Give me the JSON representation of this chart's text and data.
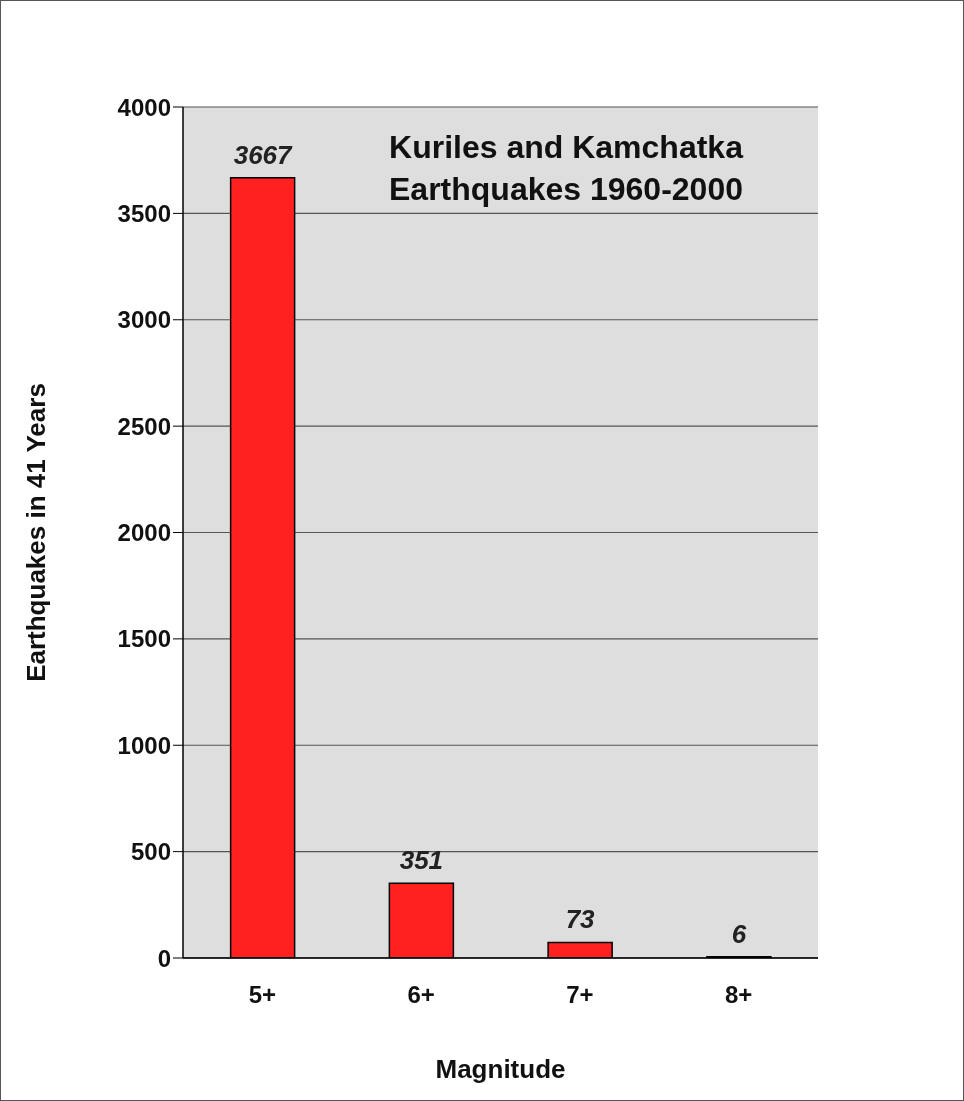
{
  "chart_data": {
    "type": "bar",
    "title": "Kuriles and Kamchatka Earthquakes 1960-2000",
    "xlabel": "Magnitude",
    "ylabel": "Earthquakes in 41 Years",
    "categories": [
      "5+",
      "6+",
      "7+",
      "8+"
    ],
    "values": [
      3667,
      351,
      73,
      6
    ],
    "color": "#ff2020",
    "ylim": [
      0,
      4000
    ],
    "yticks": [
      0,
      500,
      1000,
      1500,
      2000,
      2500,
      3000,
      3500,
      4000
    ],
    "grid": "y",
    "data_labels": true
  }
}
